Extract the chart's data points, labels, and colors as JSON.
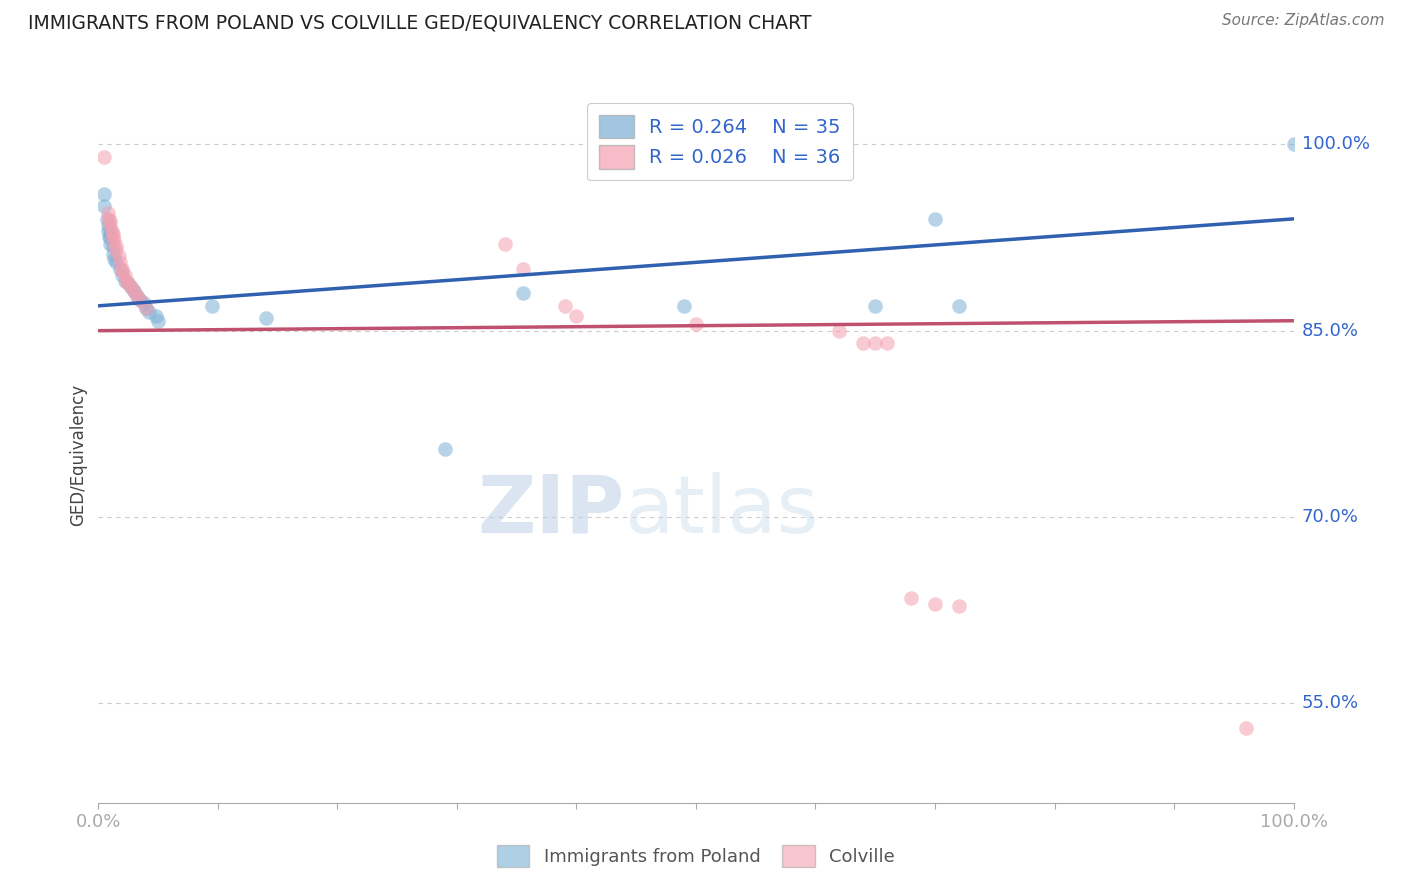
{
  "title": "IMMIGRANTS FROM POLAND VS COLVILLE GED/EQUIVALENCY CORRELATION CHART",
  "source": "Source: ZipAtlas.com",
  "ylabel": "GED/Equivalency",
  "ylabel_right_labels": [
    "100.0%",
    "85.0%",
    "70.0%",
    "55.0%"
  ],
  "ylabel_right_values": [
    1.0,
    0.85,
    0.7,
    0.55
  ],
  "legend_blue_r": "R = 0.264",
  "legend_blue_n": "N = 35",
  "legend_pink_r": "R = 0.026",
  "legend_pink_n": "N = 36",
  "legend_label_blue": "Immigrants from Poland",
  "legend_label_pink": "Colville",
  "blue_color": "#7BAFD4",
  "pink_color": "#F4A0B0",
  "blue_line_color": "#3060B0",
  "pink_line_color": "#C05070",
  "legend_r_color": "#3366CC",
  "blue_scatter": [
    [
      0.005,
      0.96
    ],
    [
      0.005,
      0.95
    ],
    [
      0.007,
      0.94
    ],
    [
      0.008,
      0.935
    ],
    [
      0.008,
      0.93
    ],
    [
      0.009,
      0.925
    ],
    [
      0.01,
      0.93
    ],
    [
      0.01,
      0.925
    ],
    [
      0.01,
      0.92
    ],
    [
      0.012,
      0.918
    ],
    [
      0.012,
      0.912
    ],
    [
      0.013,
      0.908
    ],
    [
      0.015,
      0.905
    ],
    [
      0.018,
      0.9
    ],
    [
      0.02,
      0.895
    ],
    [
      0.022,
      0.89
    ],
    [
      0.025,
      0.888
    ],
    [
      0.027,
      0.885
    ],
    [
      0.03,
      0.882
    ],
    [
      0.032,
      0.878
    ],
    [
      0.035,
      0.875
    ],
    [
      0.038,
      0.872
    ],
    [
      0.04,
      0.868
    ],
    [
      0.042,
      0.865
    ],
    [
      0.048,
      0.862
    ],
    [
      0.05,
      0.858
    ],
    [
      0.095,
      0.87
    ],
    [
      0.14,
      0.86
    ],
    [
      0.29,
      0.755
    ],
    [
      0.355,
      0.88
    ],
    [
      0.49,
      0.87
    ],
    [
      0.65,
      0.87
    ],
    [
      0.7,
      0.94
    ],
    [
      0.72,
      0.87
    ],
    [
      1.0,
      1.0
    ]
  ],
  "pink_scatter": [
    [
      0.005,
      0.99
    ],
    [
      0.008,
      0.945
    ],
    [
      0.009,
      0.94
    ],
    [
      0.01,
      0.938
    ],
    [
      0.01,
      0.935
    ],
    [
      0.011,
      0.93
    ],
    [
      0.012,
      0.928
    ],
    [
      0.012,
      0.925
    ],
    [
      0.013,
      0.922
    ],
    [
      0.015,
      0.918
    ],
    [
      0.015,
      0.915
    ],
    [
      0.017,
      0.91
    ],
    [
      0.018,
      0.905
    ],
    [
      0.02,
      0.9
    ],
    [
      0.02,
      0.898
    ],
    [
      0.022,
      0.895
    ],
    [
      0.023,
      0.89
    ],
    [
      0.025,
      0.888
    ],
    [
      0.027,
      0.885
    ],
    [
      0.03,
      0.882
    ],
    [
      0.032,
      0.878
    ],
    [
      0.035,
      0.875
    ],
    [
      0.04,
      0.868
    ],
    [
      0.34,
      0.92
    ],
    [
      0.355,
      0.9
    ],
    [
      0.39,
      0.87
    ],
    [
      0.4,
      0.862
    ],
    [
      0.5,
      0.855
    ],
    [
      0.62,
      0.85
    ],
    [
      0.64,
      0.84
    ],
    [
      0.65,
      0.84
    ],
    [
      0.66,
      0.84
    ],
    [
      0.68,
      0.635
    ],
    [
      0.7,
      0.63
    ],
    [
      0.72,
      0.628
    ],
    [
      0.96,
      0.53
    ]
  ],
  "blue_line": [
    [
      0.0,
      0.87
    ],
    [
      1.0,
      0.94
    ]
  ],
  "pink_line": [
    [
      0.0,
      0.85
    ],
    [
      1.0,
      0.858
    ]
  ],
  "xlim": [
    0.0,
    1.0
  ],
  "ylim": [
    0.47,
    1.03
  ],
  "grid_color": "#CCCCCC",
  "background_color": "#FFFFFF"
}
